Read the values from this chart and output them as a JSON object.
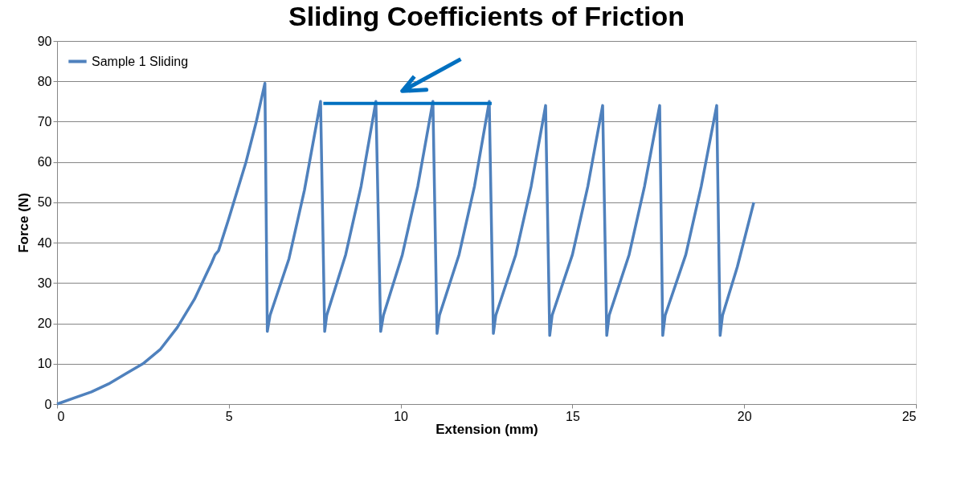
{
  "chart_data": {
    "type": "line",
    "title": "Sliding Coefficients of Friction",
    "xlabel": "Extension (mm)",
    "ylabel": "Force (N)",
    "xlim": [
      0,
      25
    ],
    "xticks": [
      0,
      5,
      10,
      15,
      20,
      25
    ],
    "ylim": [
      0,
      90
    ],
    "yticks": [
      0,
      10,
      20,
      30,
      40,
      50,
      60,
      70,
      80,
      90
    ],
    "grid": "y",
    "legend": "top left",
    "marker": "none",
    "line_style": "solid",
    "series": [
      {
        "name": "Sample 1 Sliding",
        "color": "#4f81bd",
        "x": [
          0,
          0.5,
          1,
          1.5,
          2,
          2.5,
          3,
          3.5,
          4,
          4.5,
          4.6,
          4.7,
          5,
          5.5,
          5.8,
          6.05,
          6.12,
          6.2,
          6.75,
          7.2,
          7.67,
          7.79,
          7.85,
          8.4,
          8.85,
          9.28,
          9.42,
          9.5,
          10.05,
          10.5,
          10.94,
          11.06,
          11.13,
          11.7,
          12.15,
          12.58,
          12.7,
          12.77,
          13.35,
          13.8,
          14.22,
          14.34,
          14.41,
          15.0,
          15.45,
          15.88,
          16.0,
          16.07,
          16.65,
          17.1,
          17.54,
          17.63,
          17.7,
          18.3,
          18.75,
          19.2,
          19.3,
          19.37,
          19.8,
          20.28
        ],
        "values": [
          0,
          1.5,
          3,
          5,
          7.5,
          10,
          13.5,
          19,
          26,
          35,
          37,
          38,
          46,
          60,
          70,
          79.5,
          18,
          22,
          36,
          53,
          75,
          18,
          22,
          37,
          54,
          75,
          18,
          22,
          37,
          54,
          75,
          17.5,
          22,
          37,
          54,
          75,
          17.5,
          22,
          37,
          54,
          74,
          17,
          22,
          37,
          54,
          74,
          17,
          22,
          37,
          54,
          74,
          17,
          22,
          37,
          54,
          74,
          17,
          22,
          34,
          50
        ]
      },
      {
        "type": "line",
        "color": "#0070c0",
        "x": [
          7.75,
          12.65
        ],
        "values": [
          74.5,
          74.5
        ]
      }
    ]
  }
}
